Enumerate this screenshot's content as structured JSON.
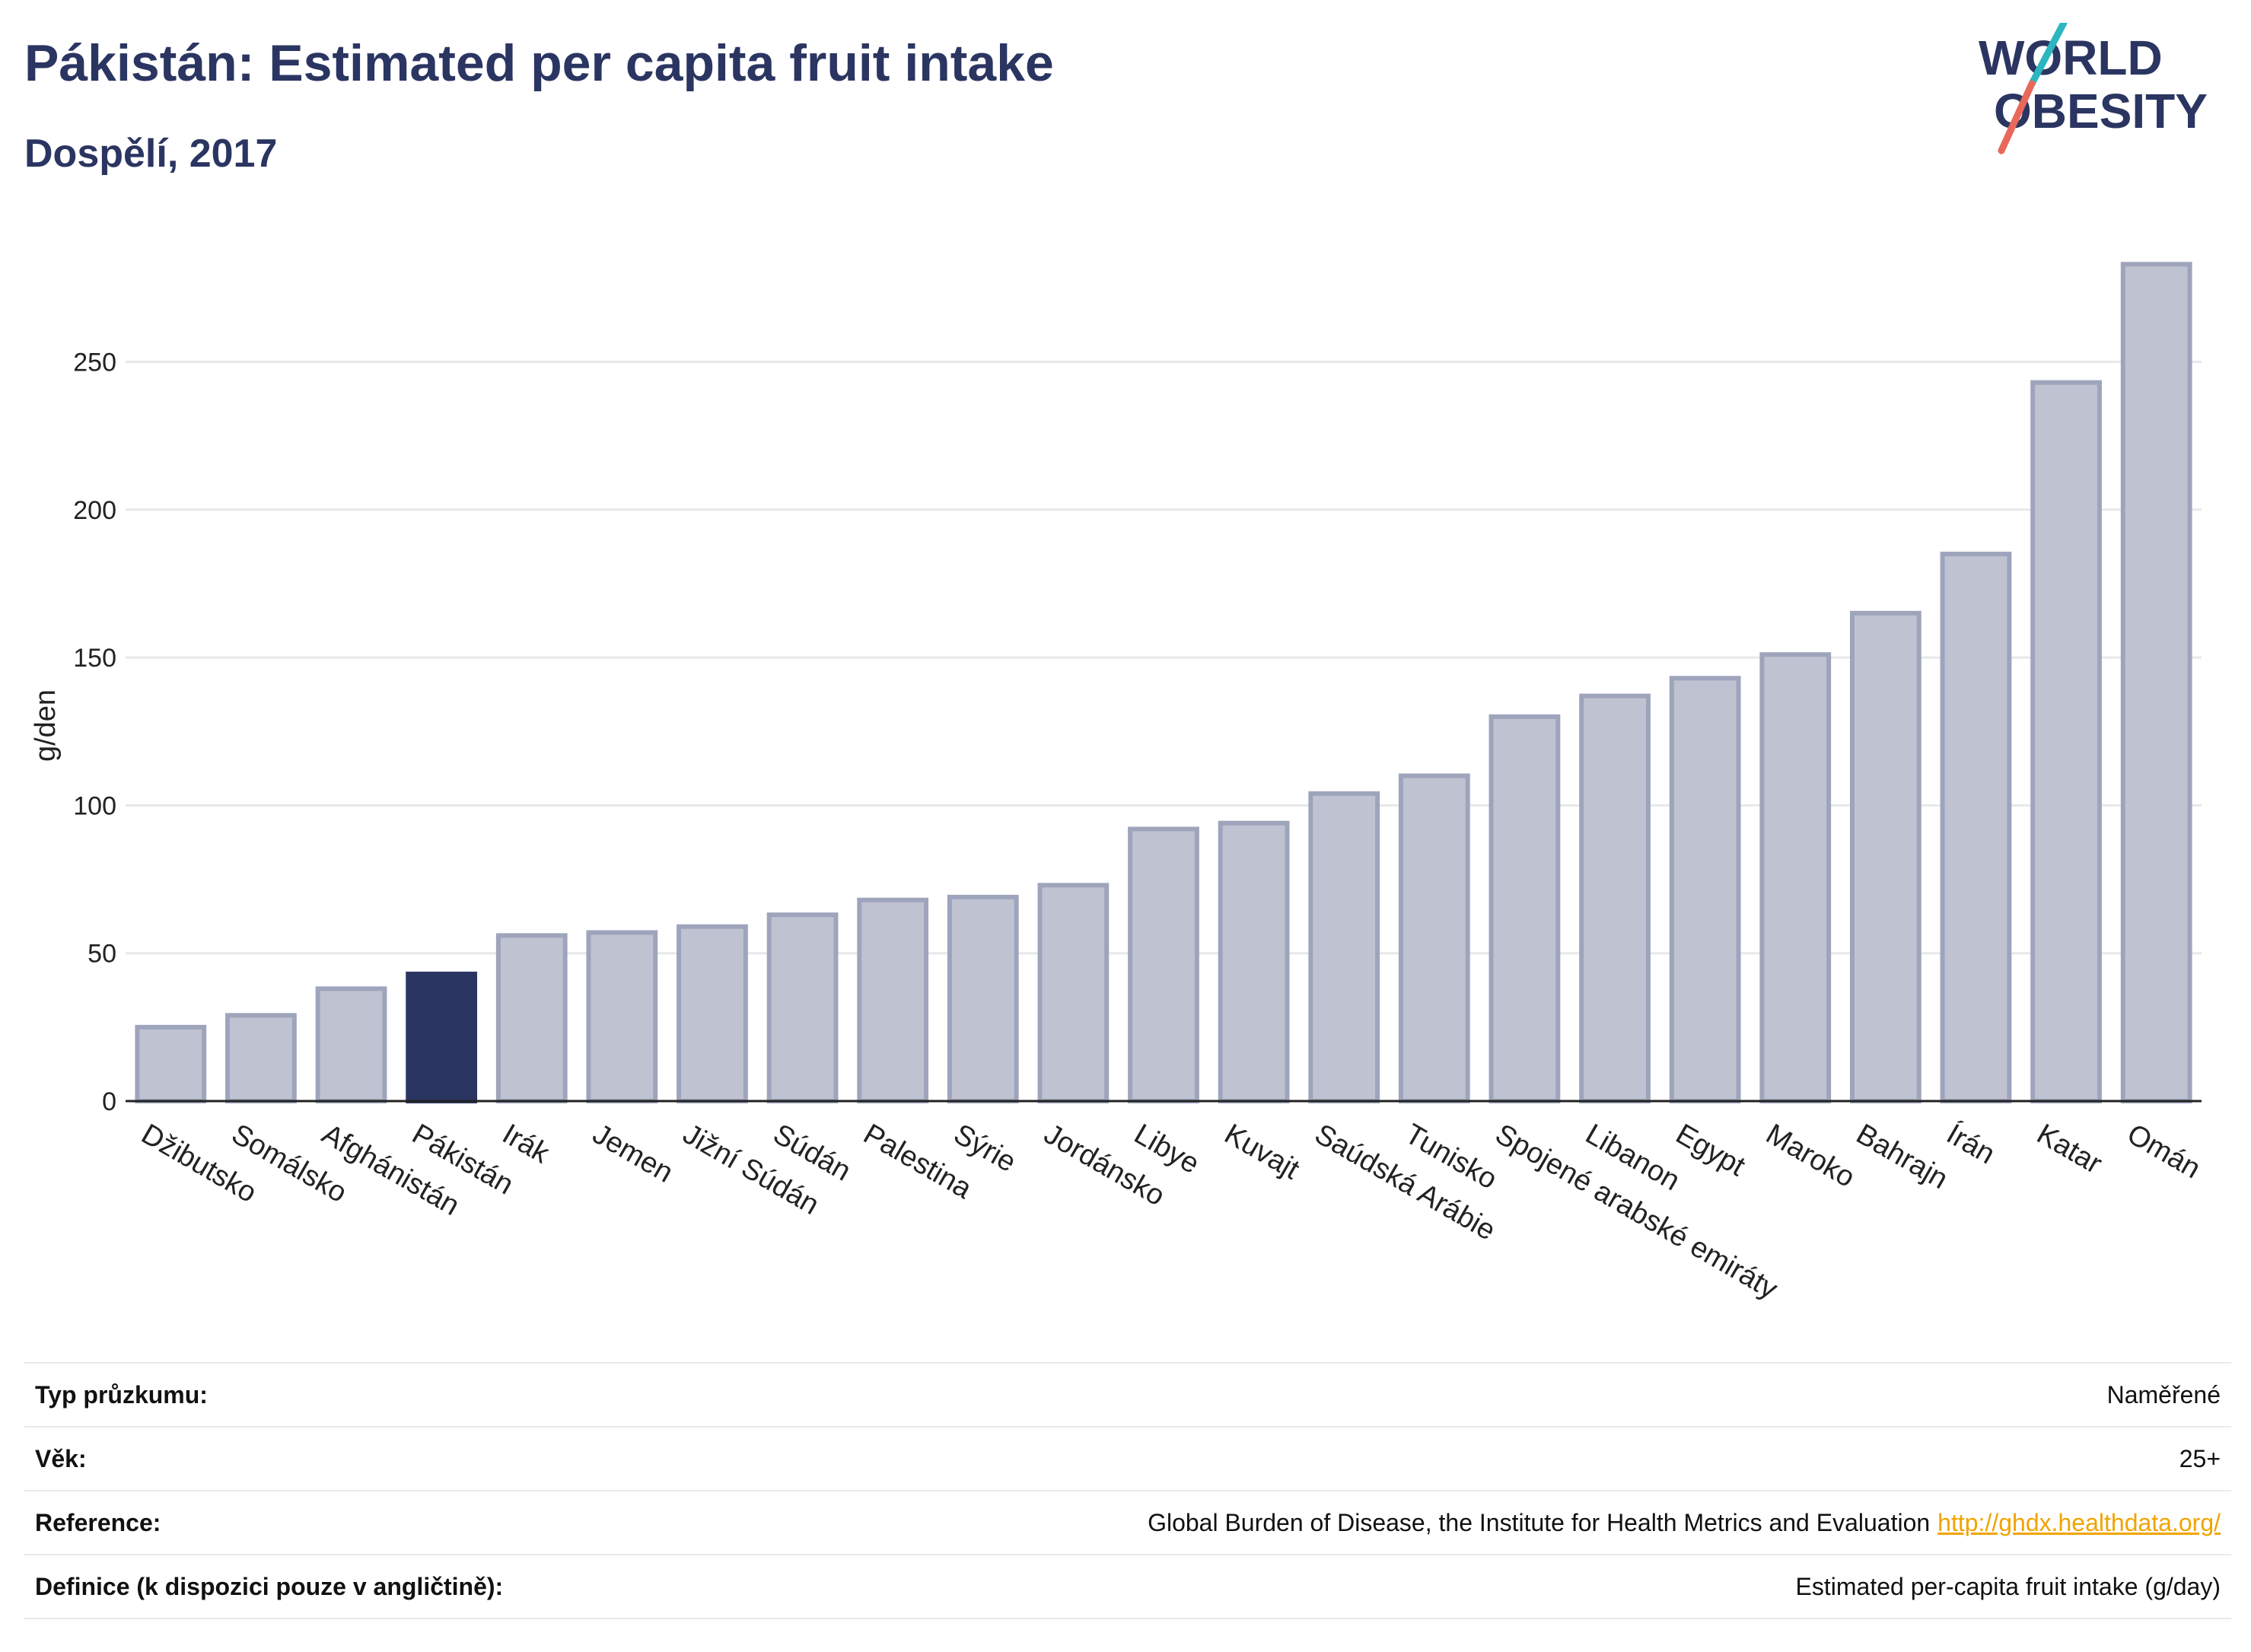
{
  "header": {
    "title": "Pákistán: Estimated per capita fruit intake",
    "subtitle": "Dospělí, 2017"
  },
  "logo": {
    "line1": "WORLD",
    "line2": "OBESITY",
    "colors": {
      "text": "#2b3561",
      "slash_top": "#2bb6c0",
      "slash_bottom": "#e8685a"
    }
  },
  "chart_data": {
    "type": "bar",
    "categories": [
      "Džibutsko",
      "Somálsko",
      "Afghánistán",
      "Pákistán",
      "Irák",
      "Jemen",
      "Jižní Súdán",
      "Súdán",
      "Palestina",
      "Sýrie",
      "Jordánsko",
      "Libye",
      "Kuvajt",
      "Saúdská Arábie",
      "Tunisko",
      "Spojené arabské emiráty",
      "Libanon",
      "Egypt",
      "Maroko",
      "Bahrajn",
      "Írán",
      "Katar",
      "Omán"
    ],
    "values": [
      25,
      29,
      38,
      43,
      56,
      57,
      59,
      63,
      68,
      69,
      73,
      92,
      94,
      104,
      110,
      130,
      137,
      143,
      151,
      165,
      185,
      243,
      283
    ],
    "highlight": "Pákistán",
    "ylabel": "g/den",
    "xlabel": "",
    "ylim": [
      0,
      290
    ],
    "yticks": [
      0,
      50,
      100,
      150,
      200,
      250
    ],
    "grid": true,
    "colors": {
      "bar": "#bfc3d1",
      "bar_edge": "#9ea4bb",
      "highlight": "#2b3561",
      "grid": "#e6e8ec",
      "axis": "#222222"
    }
  },
  "info": {
    "rows": [
      {
        "label": "Typ průzkumu:",
        "value": "Naměřené"
      },
      {
        "label": "Věk:",
        "value": "25+"
      },
      {
        "label": "Reference:",
        "value": "Global Burden of Disease, the Institute for Health Metrics and Evaluation",
        "link": "http://ghdx.healthdata.org/"
      },
      {
        "label": "Definice (k dispozici pouze v angličtině):",
        "value": "Estimated per-capita fruit intake (g/day)"
      }
    ]
  }
}
